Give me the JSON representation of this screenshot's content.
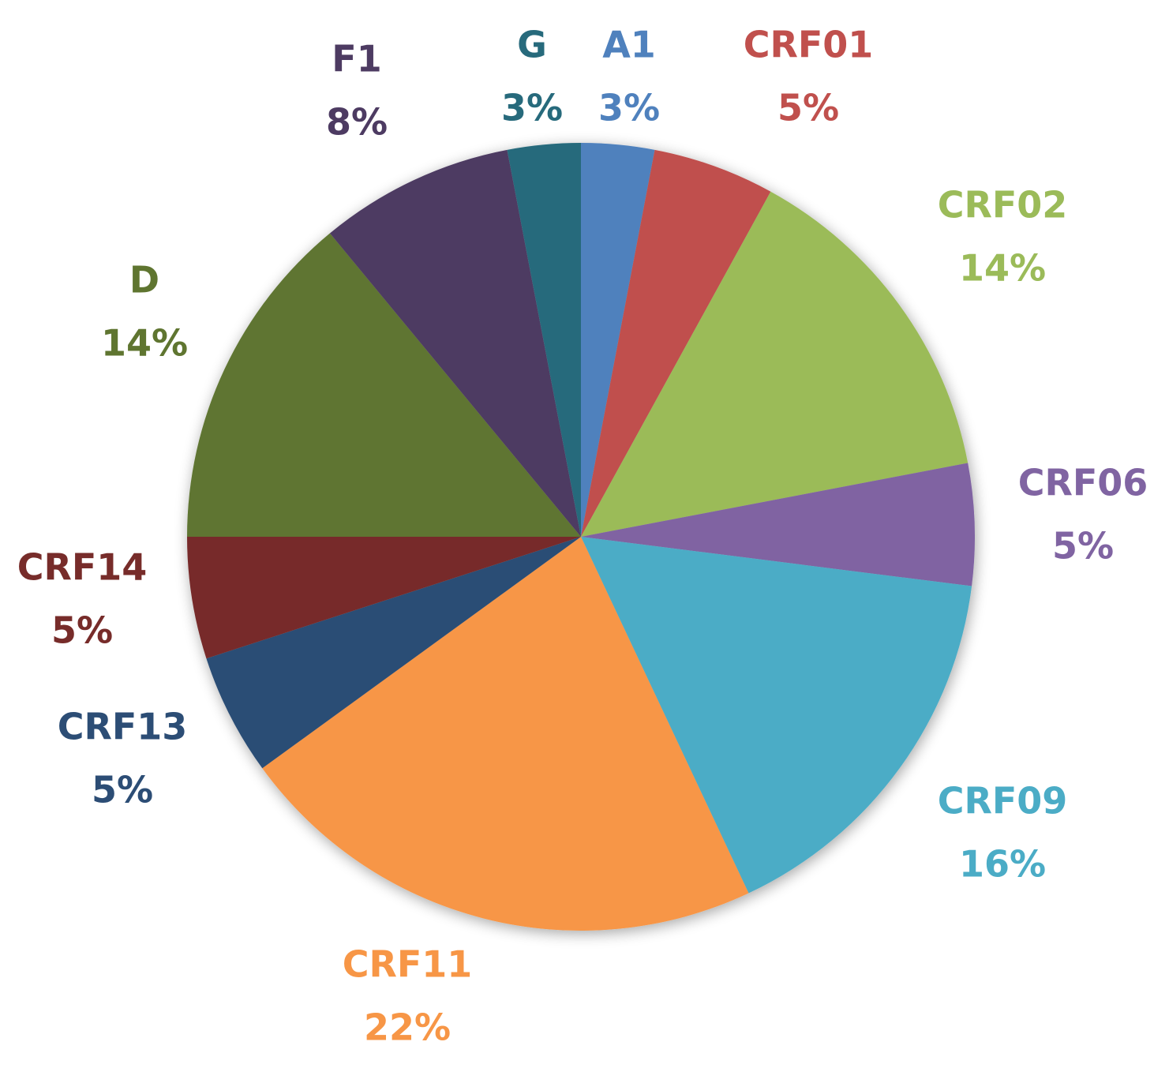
{
  "chart_data": {
    "type": "pie",
    "title": "",
    "slices": [
      {
        "label": "A1",
        "value": 3,
        "display": "3%",
        "color": "#4f81bd"
      },
      {
        "label": "CRF01",
        "value": 5,
        "display": "5%",
        "color": "#c0504d"
      },
      {
        "label": "CRF02",
        "value": 14,
        "display": "14%",
        "color": "#9bbb59"
      },
      {
        "label": "CRF06",
        "value": 5,
        "display": "5%",
        "color": "#8064a2"
      },
      {
        "label": "CRF09",
        "value": 16,
        "display": "16%",
        "color": "#4bacc6"
      },
      {
        "label": "CRF11",
        "value": 22,
        "display": "22%",
        "color": "#f79646"
      },
      {
        "label": "CRF13",
        "value": 5,
        "display": "5%",
        "color": "#2c4d75"
      },
      {
        "label": "CRF14",
        "value": 5,
        "display": "5%",
        "color": "#772c2a"
      },
      {
        "label": "D",
        "value": 14,
        "display": "14%",
        "color": "#5f7530"
      },
      {
        "label": "F1",
        "value": 8,
        "display": "8%",
        "color": "#4d3b62"
      },
      {
        "label": "G",
        "value": 3,
        "display": "3%",
        "color": "#276a7c"
      }
    ]
  }
}
